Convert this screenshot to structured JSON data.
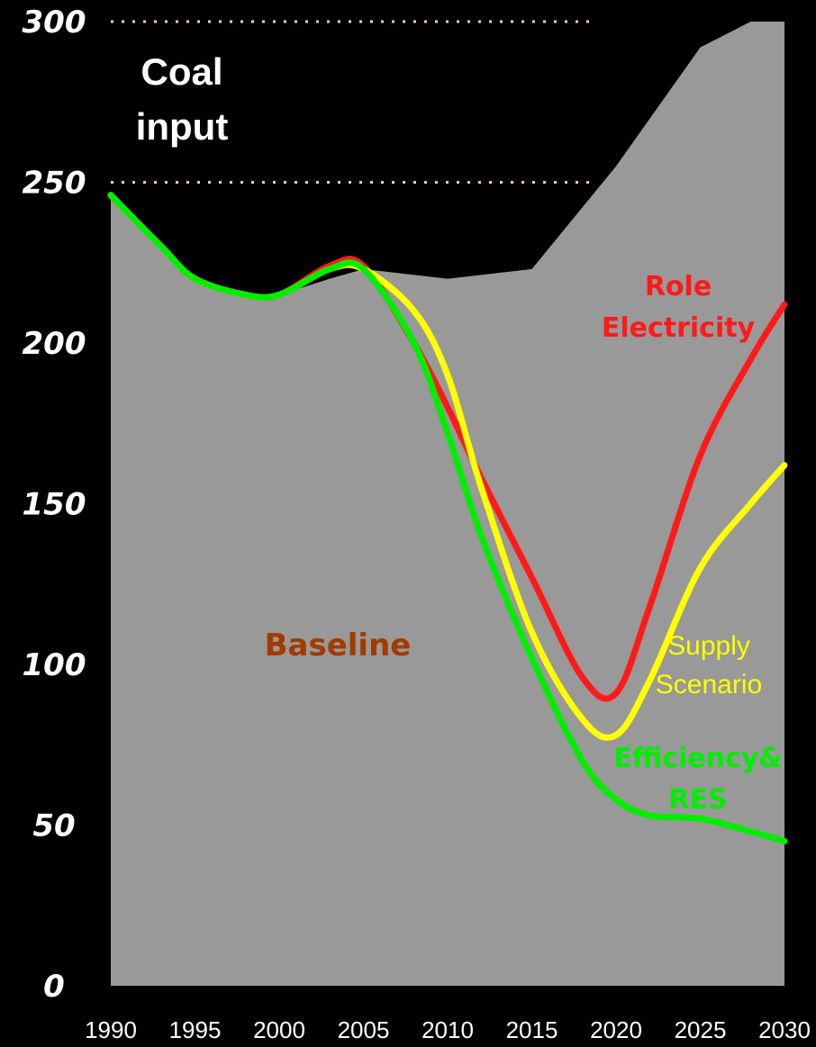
{
  "chart_data": {
    "type": "area",
    "title": "",
    "xlabel": "",
    "ylabel": "",
    "ylim": [
      0,
      300
    ],
    "xlim": [
      1990,
      2030
    ],
    "x_ticks": [
      "1990",
      "1995",
      "2000",
      "2005",
      "2010",
      "2015",
      "2020",
      "2025",
      "2030"
    ],
    "y_ticks": [
      "0",
      "50",
      "100",
      "150",
      "200",
      "250",
      "300"
    ],
    "reference_lines": [
      250,
      300
    ],
    "baseline_area": {
      "name": "Baseline",
      "color": "#999999",
      "x": [
        1990,
        1993,
        1995,
        1998,
        2000,
        2003,
        2005,
        2010,
        2015,
        2020,
        2025,
        2028,
        2030
      ],
      "values": [
        246,
        230,
        220,
        215,
        215,
        220,
        223,
        220,
        223,
        255,
        292,
        300,
        300
      ]
    },
    "series": [
      {
        "name": "Role Electricity",
        "color": "#ff1a1a",
        "x": [
          1990,
          1993,
          1995,
          1998,
          2000,
          2003,
          2005,
          2008,
          2010,
          2012,
          2015,
          2018,
          2020,
          2022,
          2025,
          2028,
          2030
        ],
        "values": [
          246,
          230,
          220,
          215,
          215,
          224,
          224,
          200,
          180,
          158,
          127,
          96,
          91,
          118,
          165,
          195,
          212
        ]
      },
      {
        "name": "Supply Scenario",
        "color": "#ffff00",
        "x": [
          1990,
          1993,
          1995,
          1998,
          2000,
          2003,
          2005,
          2008,
          2010,
          2012,
          2015,
          2018,
          2020,
          2022,
          2025,
          2028,
          2030
        ],
        "values": [
          246,
          230,
          220,
          215,
          215,
          223,
          223,
          210,
          190,
          155,
          110,
          83,
          78,
          95,
          130,
          150,
          162
        ]
      },
      {
        "name": "Efficiency& RES",
        "color": "#00ee00",
        "x": [
          1990,
          1993,
          1995,
          1998,
          2000,
          2003,
          2005,
          2008,
          2010,
          2012,
          2015,
          2018,
          2020,
          2022,
          2025,
          2028,
          2030
        ],
        "values": [
          246,
          230,
          220,
          215,
          215,
          223,
          223,
          200,
          172,
          140,
          102,
          70,
          58,
          53,
          52,
          48,
          45
        ]
      }
    ],
    "annotations": {
      "coal_input": [
        "Coal",
        "input"
      ],
      "baseline": "Baseline",
      "role_electricity": [
        "Role",
        "Electricity"
      ],
      "supply_scenario": [
        "Supply",
        "Scenario"
      ],
      "efficiency_res": [
        "Efficiency&",
        "RES"
      ]
    },
    "colors": {
      "background": "#000000",
      "area": "#999999",
      "reference_line": "#ffcc99",
      "baseline_label": "#a33a00"
    }
  }
}
